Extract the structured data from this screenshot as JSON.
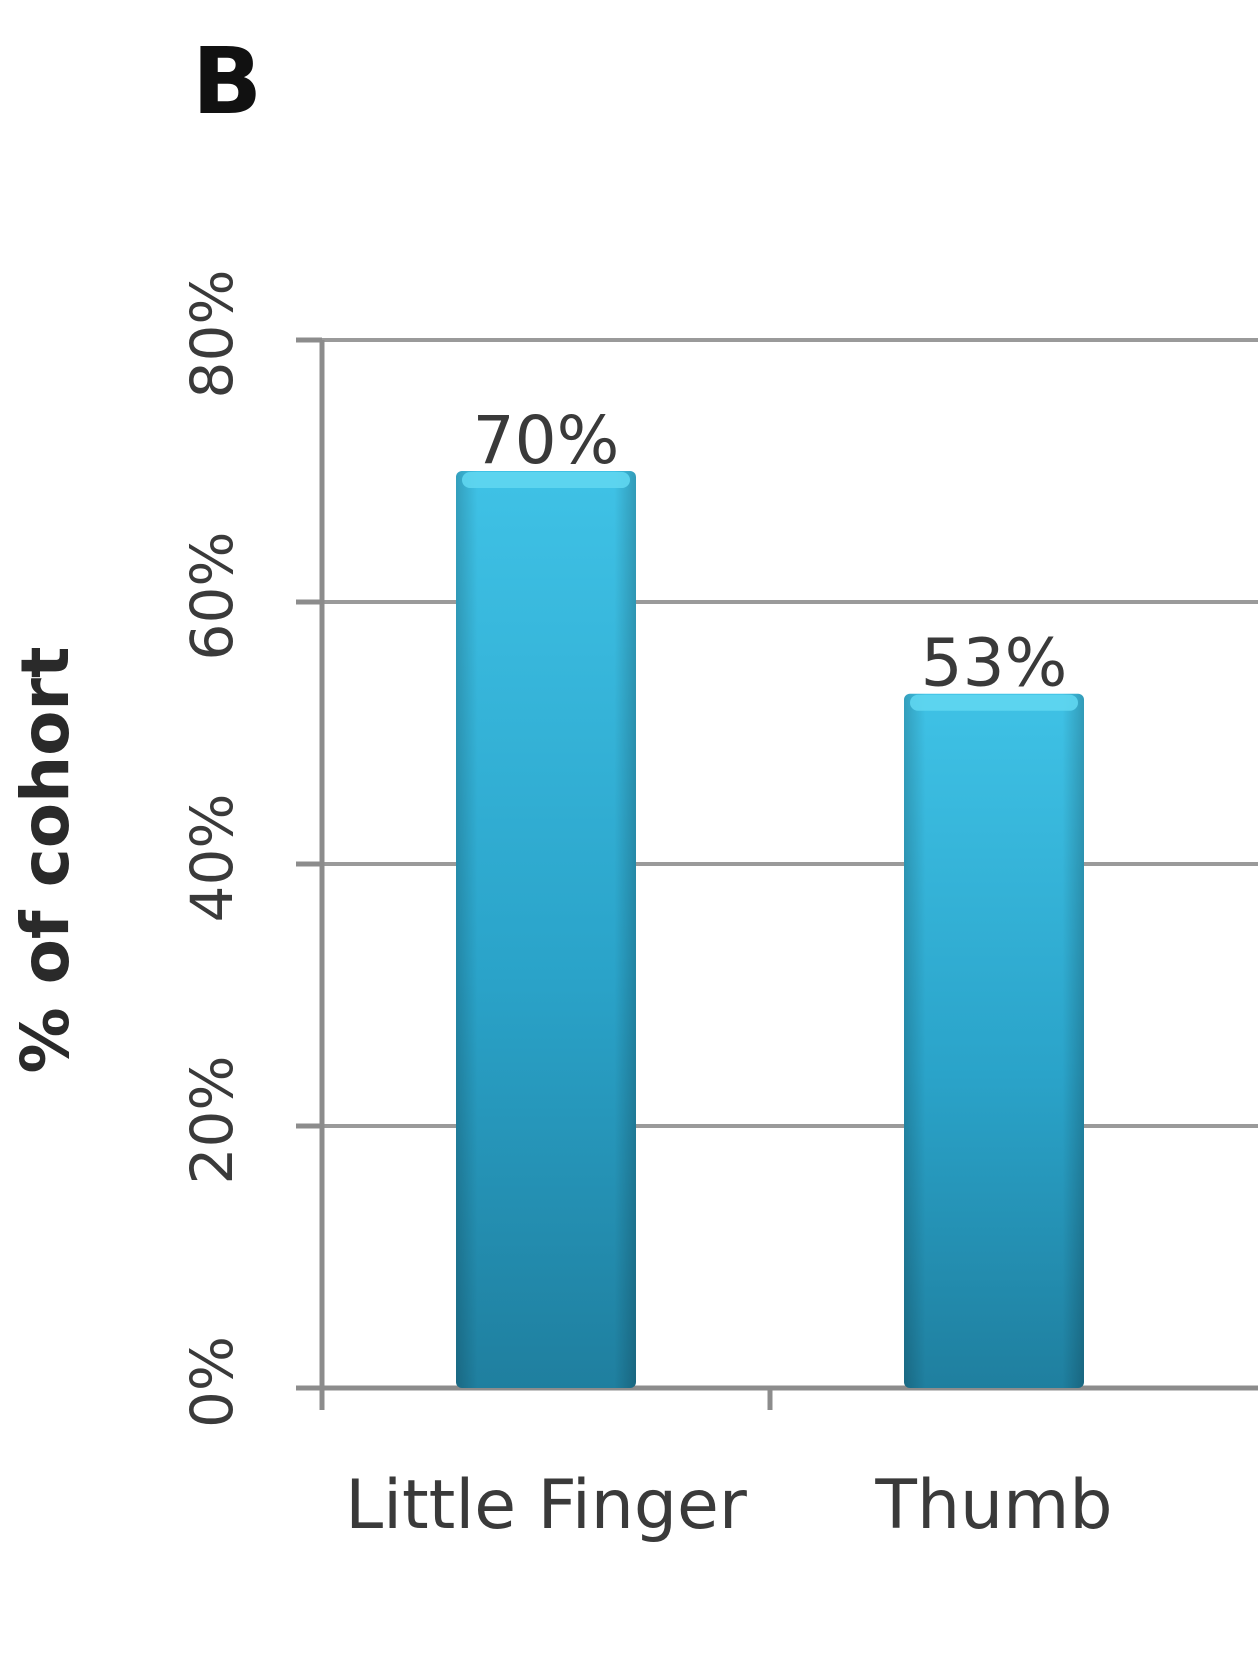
{
  "panel_label": "B",
  "chart_data": {
    "type": "bar",
    "title": "",
    "xlabel": "",
    "ylabel": "% of cohort",
    "categories": [
      "Little Finger",
      "Thumb"
    ],
    "values": [
      70,
      53
    ],
    "data_labels": [
      "70%",
      "53%"
    ],
    "ylim": [
      0,
      80
    ],
    "yticks": [
      0,
      20,
      40,
      60,
      80
    ],
    "ytick_labels": [
      "0%",
      "20%",
      "40%",
      "60%",
      "80%"
    ],
    "grid": true,
    "legend": "none",
    "bar_color": "#2aa3c9",
    "bar_highlight_color": "#5fd6f0",
    "bar_shadow_color": "#1e7f9e"
  }
}
